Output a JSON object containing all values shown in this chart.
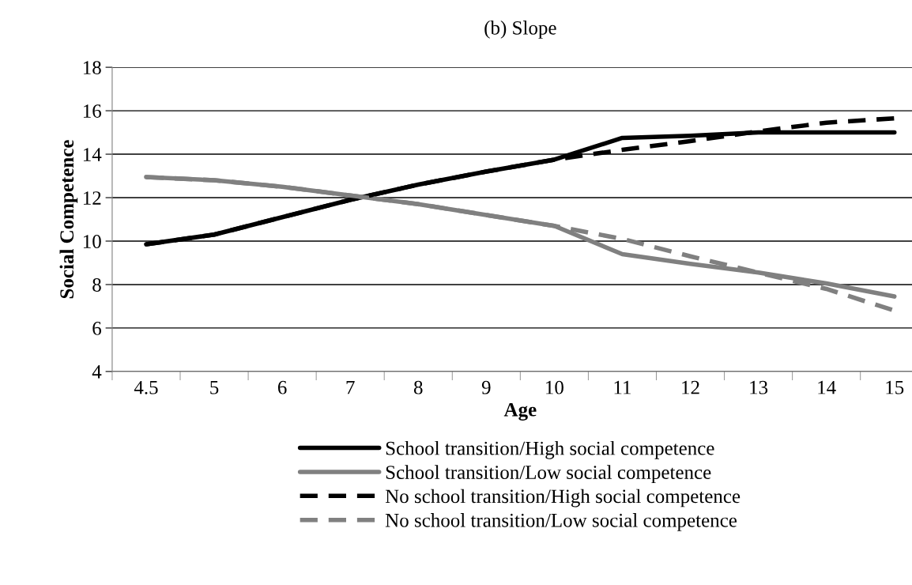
{
  "chart_data": {
    "type": "line",
    "title": "(b) Slope",
    "xlabel": "Age",
    "ylabel": "Social Competence",
    "categories": [
      "4.5",
      "5",
      "6",
      "7",
      "8",
      "9",
      "10",
      "11",
      "12",
      "13",
      "14",
      "15"
    ],
    "series": [
      {
        "name": "School transition/High social competence",
        "color": "#000000",
        "line_style": "solid",
        "values": [
          9.85,
          10.3,
          11.1,
          11.9,
          12.6,
          13.2,
          13.75,
          14.75,
          14.85,
          15.0,
          15.0,
          15.0
        ]
      },
      {
        "name": "School transition/Low social competence",
        "color": "#808080",
        "line_style": "solid",
        "values": [
          12.95,
          12.8,
          12.5,
          12.1,
          11.7,
          11.2,
          10.7,
          9.4,
          8.95,
          8.55,
          8.05,
          7.45
        ]
      },
      {
        "name": "No school transition/High social competence",
        "color": "#000000",
        "line_style": "dashed",
        "values": [
          9.85,
          10.3,
          11.1,
          11.9,
          12.6,
          13.2,
          13.75,
          14.2,
          14.6,
          15.05,
          15.45,
          15.65
        ]
      },
      {
        "name": "No school transition/Low social competence",
        "color": "#808080",
        "line_style": "dashed",
        "values": [
          12.95,
          12.8,
          12.5,
          12.1,
          11.7,
          11.2,
          10.7,
          10.1,
          9.3,
          8.55,
          7.8,
          6.8
        ]
      }
    ],
    "ylim": [
      4,
      18
    ],
    "yticks": [
      4,
      6,
      8,
      10,
      12,
      14,
      16,
      18
    ],
    "grid": "y",
    "legend": "bottom",
    "marker": "none"
  }
}
